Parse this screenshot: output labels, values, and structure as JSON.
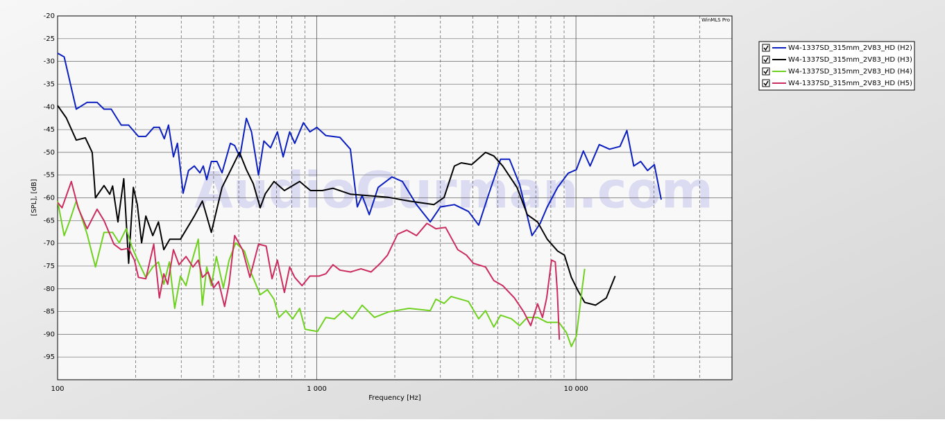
{
  "chart_data": {
    "type": "line",
    "log_x": true,
    "grid": true,
    "legend": "upper right",
    "software_label": "WinMLS Pro",
    "watermark": "AudioGurman.com",
    "xlabel": "Frequency [Hz]",
    "ylabel": "[SPL], [dB]",
    "xlim": [
      100,
      40000
    ],
    "ylim": [
      -100,
      -20
    ],
    "xticks": [
      100,
      {
        "value": 1000,
        "label": "1 000"
      },
      {
        "value": 10000,
        "label": "10 000"
      }
    ],
    "xminor": [
      200,
      300,
      400,
      500,
      600,
      700,
      800,
      900,
      2000,
      3000,
      4000,
      5000,
      6000,
      7000,
      8000,
      9000,
      20000,
      30000
    ],
    "yticks": [
      -95,
      -90,
      -85,
      -80,
      -75,
      -70,
      -65,
      -60,
      -55,
      -50,
      -45,
      -40,
      -35,
      -30,
      -25,
      -20
    ],
    "series": [
      {
        "name": "W4-1337SD_315mm_2V83_HD (H2)",
        "color": "#0b1ebf",
        "x": [
          100,
          106,
          118,
          130,
          142,
          151,
          161,
          176,
          188,
          205,
          219,
          235,
          247,
          258,
          268,
          280,
          290,
          305,
          320,
          337,
          354,
          365,
          376,
          392,
          412,
          431,
          464,
          482,
          505,
          535,
          560,
          596,
          625,
          663,
          705,
          742,
          786,
          822,
          888,
          941,
          1000,
          1084,
          1228,
          1348,
          1434,
          1497,
          1594,
          1725,
          1950,
          2140,
          2425,
          2740,
          3000,
          3396,
          3850,
          4213,
          4620,
          5120,
          5540,
          6060,
          6770,
          7280,
          7750,
          8500,
          9330,
          10040,
          10680,
          11340,
          12300,
          13480,
          14790,
          15720,
          16710,
          17770,
          18890,
          20070,
          21330
        ],
        "values": [
          -28.2,
          -29,
          -40.5,
          -39,
          -39,
          -40.5,
          -40.5,
          -44,
          -44,
          -46.5,
          -46.5,
          -44.5,
          -44.5,
          -47,
          -44,
          -51,
          -48,
          -59,
          -54,
          -53,
          -54.5,
          -53,
          -56,
          -52,
          -52,
          -54.5,
          -48,
          -48.5,
          -51,
          -42.5,
          -45.5,
          -55,
          -47.5,
          -49,
          -45.5,
          -51,
          -45.5,
          -48,
          -43.5,
          -45.5,
          -44.5,
          -46.3,
          -46.7,
          -49.3,
          -62,
          -59.5,
          -63.7,
          -57.7,
          -55.4,
          -56.4,
          -61.5,
          -65.3,
          -62,
          -61.5,
          -63,
          -66,
          -59,
          -51.5,
          -51.5,
          -57,
          -68.3,
          -65.6,
          -62,
          -57.7,
          -54.6,
          -53.8,
          -49.7,
          -53,
          -48.3,
          -49.3,
          -48.7,
          -45.2,
          -53,
          -52,
          -54,
          -52.7,
          -60.4
        ]
      },
      {
        "name": "W4-1337SD_315mm_2V83_HD (H3)",
        "color": "#000000",
        "x": [
          100,
          108,
          118,
          128,
          136,
          140,
          151,
          159,
          163,
          171,
          180,
          188,
          196,
          203,
          211,
          219,
          233,
          245,
          257,
          271,
          298,
          337,
          362,
          392,
          431,
          459,
          503,
          535,
          569,
          605,
          633,
          684,
          750,
          859,
          946,
          1050,
          1155,
          1350,
          1574,
          1890,
          2270,
          2830,
          3100,
          3396,
          3610,
          3960,
          4480,
          4820,
          5220,
          5920,
          6490,
          7110,
          7750,
          8500,
          9030,
          9600,
          10200,
          10810,
          11900,
          13100,
          14170
        ],
        "values": [
          -39.7,
          -42.4,
          -47.3,
          -46.8,
          -50,
          -60,
          -57.3,
          -59.2,
          -57.4,
          -65.3,
          -55.8,
          -74.4,
          -57.7,
          -61.5,
          -69.9,
          -64,
          -68.3,
          -65.3,
          -71.4,
          -69.1,
          -69.1,
          -64,
          -60.7,
          -67.6,
          -57.7,
          -54.6,
          -50,
          -53.8,
          -56.9,
          -62.2,
          -59.1,
          -56.4,
          -58.4,
          -56.4,
          -58.4,
          -58.4,
          -57.9,
          -59.2,
          -59.5,
          -59.9,
          -60.7,
          -61.5,
          -59.9,
          -53,
          -52.3,
          -52.7,
          -50,
          -50.8,
          -53,
          -57.7,
          -63.7,
          -65.3,
          -69.1,
          -71.7,
          -72.6,
          -77.5,
          -80.5,
          -83,
          -83.6,
          -82,
          -77.2
        ]
      },
      {
        "name": "W4-1337SD_315mm_2V83_HD (H4)",
        "color": "#6fd11f",
        "x": [
          100,
          106,
          111,
          118,
          130,
          140,
          151,
          163,
          173,
          184,
          193,
          205,
          219,
          233,
          245,
          257,
          270,
          283,
          298,
          313,
          328,
          349,
          362,
          376,
          392,
          410,
          436,
          459,
          487,
          526,
          560,
          605,
          645,
          684,
          715,
          760,
          808,
          859,
          902,
          1006,
          1084,
          1170,
          1265,
          1371,
          1497,
          1670,
          1890,
          2270,
          2740,
          2880,
          3100,
          3300,
          3850,
          4213,
          4480,
          4820,
          5120,
          5640,
          6060,
          6490,
          7110,
          7750,
          8600,
          9200,
          9600,
          10040,
          10540,
          10810
        ],
        "values": [
          -60.7,
          -68.3,
          -65.3,
          -60.7,
          -68,
          -75.2,
          -67.6,
          -67.6,
          -69.9,
          -66.8,
          -70.6,
          -74.1,
          -77.5,
          -75.2,
          -74.1,
          -79,
          -74.1,
          -84.3,
          -77.2,
          -79.3,
          -74.4,
          -69.1,
          -83.6,
          -75.2,
          -79.3,
          -72.9,
          -79.8,
          -73.7,
          -69.9,
          -71.7,
          -76.7,
          -81.3,
          -80.2,
          -82.3,
          -86.3,
          -84.8,
          -86.6,
          -84.3,
          -88.9,
          -89.4,
          -86.3,
          -86.6,
          -84.8,
          -86.6,
          -83.6,
          -86.3,
          -85.1,
          -84.3,
          -84.8,
          -82.3,
          -83.2,
          -81.7,
          -82.8,
          -86.6,
          -84.8,
          -88.4,
          -85.8,
          -86.6,
          -88.1,
          -86.3,
          -86.3,
          -87.4,
          -87.4,
          -89.7,
          -92.7,
          -90.4,
          -80.5,
          -75.6
        ]
      },
      {
        "name": "W4-1337SD_315mm_2V83_HD (H5)",
        "color": "#cc2b5e",
        "x": [
          100,
          104,
          113,
          120,
          130,
          142,
          151,
          165,
          176,
          188,
          198,
          205,
          219,
          235,
          247,
          257,
          266,
          280,
          294,
          313,
          333,
          349,
          362,
          381,
          400,
          418,
          441,
          459,
          482,
          517,
          552,
          596,
          638,
          672,
          705,
          750,
          786,
          822,
          877,
          941,
          1020,
          1084,
          1155,
          1228,
          1350,
          1480,
          1620,
          1758,
          1875,
          2050,
          2225,
          2425,
          2660,
          2880,
          3140,
          3500,
          3780,
          4020,
          4480,
          4820,
          5220,
          5790,
          6290,
          6690,
          7110,
          7430,
          7710,
          8050,
          8320,
          8470,
          8630
        ],
        "values": [
          -61,
          -62.2,
          -56.4,
          -62.2,
          -66.8,
          -62.5,
          -65,
          -70.2,
          -71.4,
          -71.1,
          -73.7,
          -77.5,
          -77.8,
          -70.2,
          -82,
          -76.7,
          -79,
          -71.4,
          -74.7,
          -72.9,
          -75.2,
          -73.7,
          -77.5,
          -76.3,
          -79.8,
          -78.4,
          -83.9,
          -78.9,
          -68.3,
          -71.4,
          -77.5,
          -70.2,
          -70.6,
          -77.8,
          -73.7,
          -80.8,
          -75.2,
          -77.5,
          -79.3,
          -77.2,
          -77.2,
          -76.7,
          -74.7,
          -75.9,
          -76.3,
          -75.6,
          -76.3,
          -74.4,
          -72.6,
          -68,
          -67.1,
          -68.3,
          -65.6,
          -66.8,
          -66.5,
          -71.4,
          -72.6,
          -74.4,
          -75.2,
          -78.2,
          -79.3,
          -82,
          -85.1,
          -88.1,
          -83.3,
          -86.3,
          -82,
          -73.7,
          -74.1,
          -80.5,
          -91.2
        ]
      }
    ]
  }
}
